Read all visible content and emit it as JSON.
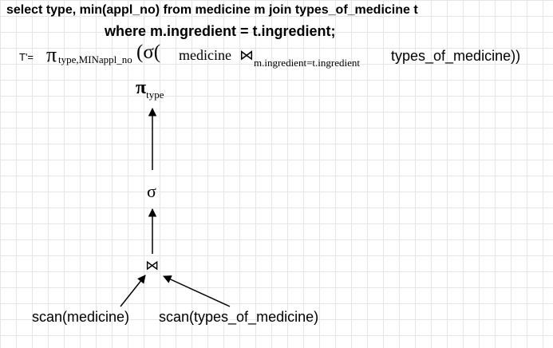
{
  "query": {
    "line1": "select type, min(appl_no) from medicine m join types_of_medicine t",
    "line2": "where m.ingredient = t.ingredient;"
  },
  "expression": {
    "prefix": "T'=",
    "pi": "π",
    "pi_subscript": "type,MINappl_no",
    "open": "(σ(",
    "relation1": "medicine",
    "join_symbol": "⋈",
    "join_condition": "m.ingredient=t.ingredient",
    "relation2": "types_of_medicine))"
  },
  "tree": {
    "root_symbol": "π",
    "root_subscript": "type",
    "select_symbol": "σ",
    "join_symbol": "⋈",
    "left_leaf": "scan(medicine)",
    "right_leaf": "scan(types_of_medicine)"
  }
}
